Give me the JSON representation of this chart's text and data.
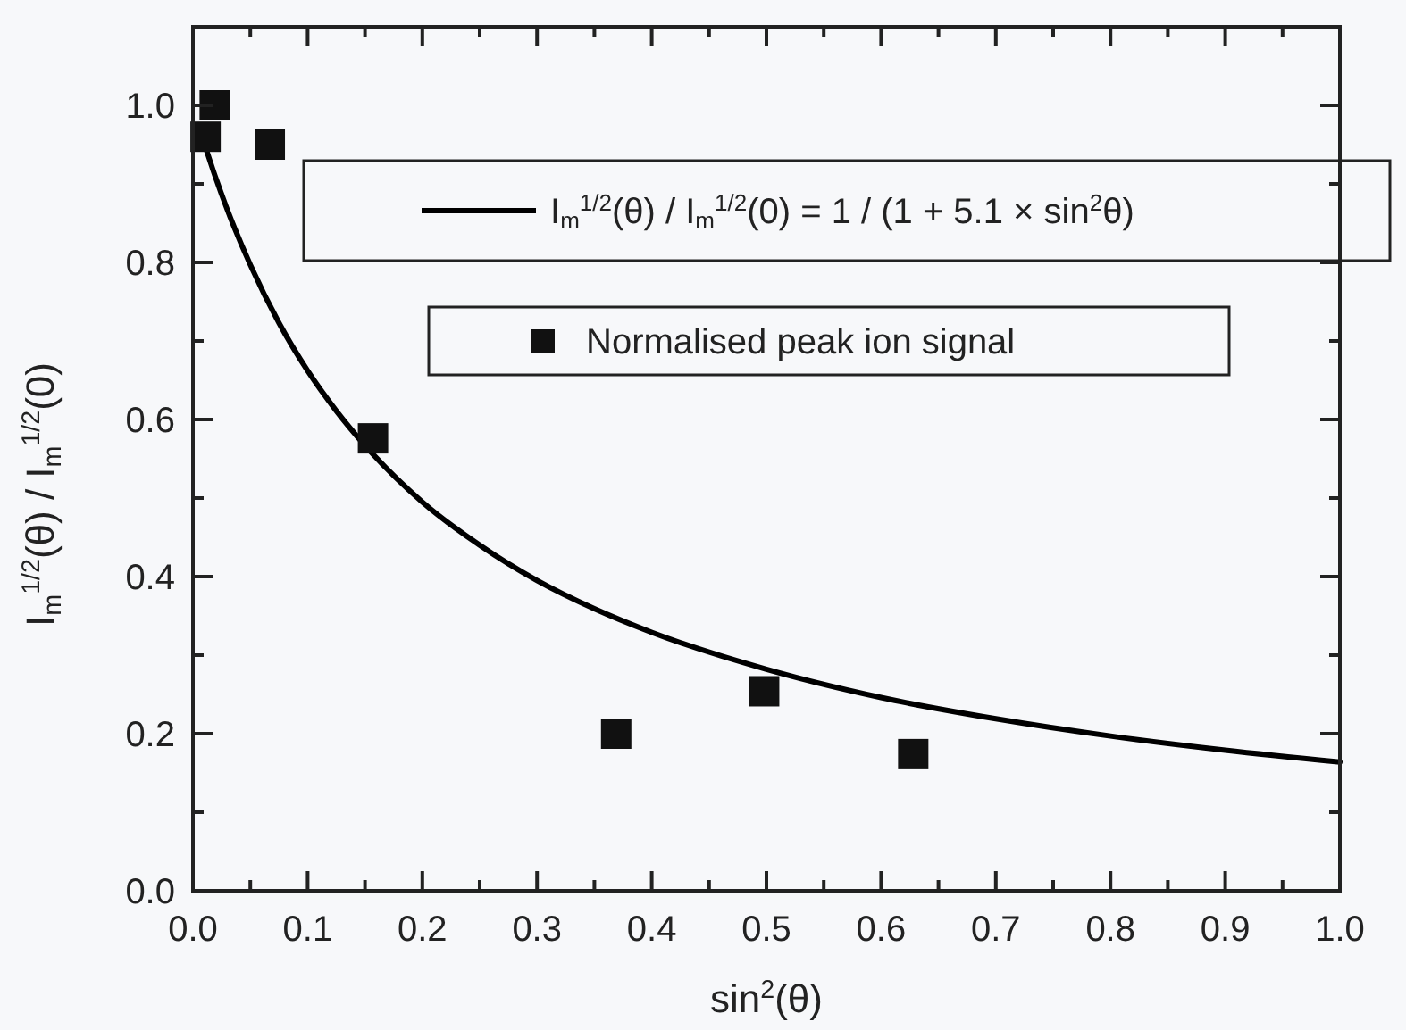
{
  "chart_data": {
    "type": "scatter",
    "xlabel": "sin$^{2}$(θ)",
    "ylabel": "I$_{m}$$^{1/2}$(θ) / I$_{m}$$^{1/2}$(0)",
    "xlim": [
      0,
      1.0
    ],
    "ylim": [
      0,
      1.1
    ],
    "xticks": [
      {
        "value": 0,
        "label": "0.0"
      },
      {
        "value": 0.05,
        "label": null
      },
      {
        "value": 0.1,
        "label": "0.1"
      },
      {
        "value": 0.15,
        "label": null
      },
      {
        "value": 0.2,
        "label": "0.2"
      },
      {
        "value": 0.25,
        "label": null
      },
      {
        "value": 0.3,
        "label": "0.3"
      },
      {
        "value": 0.35,
        "label": null
      },
      {
        "value": 0.4,
        "label": "0.4"
      },
      {
        "value": 0.45,
        "label": null
      },
      {
        "value": 0.5,
        "label": "0.5"
      },
      {
        "value": 0.55,
        "label": null
      },
      {
        "value": 0.6,
        "label": "0.6"
      },
      {
        "value": 0.65,
        "label": null
      },
      {
        "value": 0.7,
        "label": "0.7"
      },
      {
        "value": 0.75,
        "label": null
      },
      {
        "value": 0.8,
        "label": "0.8"
      },
      {
        "value": 0.85,
        "label": null
      },
      {
        "value": 0.9,
        "label": "0.9"
      },
      {
        "value": 0.95,
        "label": null
      },
      {
        "value": 1.0,
        "label": "1.0"
      }
    ],
    "yticks": [
      {
        "value": 0,
        "label": "0.0"
      },
      {
        "value": 0.1,
        "label": null
      },
      {
        "value": 0.2,
        "label": "0.2"
      },
      {
        "value": 0.3,
        "label": null
      },
      {
        "value": 0.4,
        "label": "0.4"
      },
      {
        "value": 0.5,
        "label": null
      },
      {
        "value": 0.6,
        "label": "0.6"
      },
      {
        "value": 0.7,
        "label": null
      },
      {
        "value": 0.8,
        "label": "0.8"
      },
      {
        "value": 0.9,
        "label": null
      },
      {
        "value": 1.0,
        "label": "1.0"
      }
    ],
    "legend": "top right",
    "line_style": "solid",
    "series": [
      {
        "type": "line",
        "marker": "none",
        "name": "I$_{m}$$^{1/2}$(θ) / I$_{m}$$^{1/2}$(0) = 1 / (1 + 5.1 × sin$^{2}$θ)",
        "color": "#000000",
        "x": [
          0.01,
          0.02,
          0.03,
          0.05,
          0.075,
          0.1,
          0.125,
          0.15,
          0.2,
          0.25,
          0.3,
          0.35,
          0.4,
          0.5,
          0.6,
          0.7,
          0.8,
          0.9,
          1.0
        ],
        "values": [
          0.951,
          0.907,
          0.867,
          0.797,
          0.723,
          0.662,
          0.611,
          0.567,
          0.495,
          0.44,
          0.395,
          0.359,
          0.329,
          0.282,
          0.246,
          0.219,
          0.197,
          0.179,
          0.164
        ]
      },
      {
        "marker": "square",
        "name": "Normalised peak ion signal",
        "color": "#111111",
        "x": [
          0.011,
          0.019,
          0.067,
          0.157,
          0.369,
          0.498,
          0.628
        ],
        "values": [
          0.96,
          1.0,
          0.95,
          0.576,
          0.2,
          0.254,
          0.174
        ]
      }
    ]
  }
}
